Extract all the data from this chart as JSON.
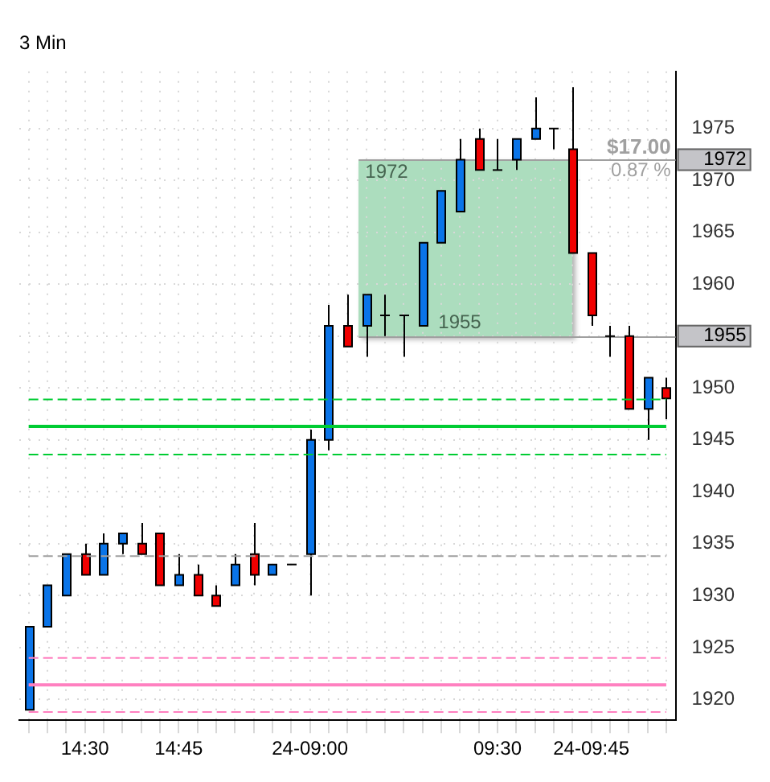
{
  "chart_data": {
    "type": "candlestick",
    "title": "3 Min",
    "categories": [
      null,
      null,
      null,
      "14:30",
      null,
      null,
      null,
      null,
      "14:45",
      null,
      null,
      null,
      null,
      null,
      null,
      "24-09:00",
      null,
      null,
      null,
      null,
      null,
      null,
      null,
      null,
      null,
      "09:30",
      null,
      null,
      null,
      null,
      "24-09:45",
      null,
      null,
      null,
      null
    ],
    "ohlc": [
      [
        1919,
        1927,
        1919,
        1927
      ],
      [
        1927,
        1931,
        1927,
        1931
      ],
      [
        1930,
        1934,
        1930,
        1934
      ],
      [
        1934,
        1935,
        1932,
        1932
      ],
      [
        1932,
        1936,
        1932,
        1935
      ],
      [
        1935,
        1936,
        1934,
        1936
      ],
      [
        1935,
        1937,
        1934,
        1934
      ],
      [
        1936,
        1936,
        1931,
        1931
      ],
      [
        1931,
        1934,
        1931,
        1932
      ],
      [
        1932,
        1933,
        1930,
        1930
      ],
      [
        1930,
        1931,
        1929,
        1929
      ],
      [
        1931,
        1934,
        1931,
        1933
      ],
      [
        1934,
        1937,
        1931,
        1932
      ],
      [
        1932,
        1933,
        1932,
        1933
      ],
      [
        1933,
        1933,
        1933,
        1933
      ],
      [
        1934,
        1946,
        1930,
        1945
      ],
      [
        1945,
        1958,
        1944,
        1956
      ],
      [
        1956,
        1959,
        1954,
        1954
      ],
      [
        1956,
        1959,
        1953,
        1959
      ],
      [
        1957,
        1959,
        1955,
        1957
      ],
      [
        1957,
        1957,
        1953,
        1957
      ],
      [
        1956,
        1964,
        1956,
        1964
      ],
      [
        1964,
        1969,
        1964,
        1969
      ],
      [
        1967,
        1974,
        1967,
        1972
      ],
      [
        1974,
        1975,
        1971,
        1971
      ],
      [
        1971,
        1974,
        1971,
        1971
      ],
      [
        1972,
        1974,
        1971,
        1974
      ],
      [
        1974,
        1978,
        1974,
        1975
      ],
      [
        1975,
        1975,
        1973,
        1975
      ],
      [
        1973,
        1979,
        1963,
        1963
      ],
      [
        1963,
        1963,
        1956,
        1957
      ],
      [
        1955,
        1956,
        1953,
        1955
      ],
      [
        1955,
        1956,
        1948,
        1948
      ],
      [
        1948,
        1951,
        1945,
        1951
      ],
      [
        1950,
        1951,
        1947,
        1949
      ]
    ],
    "colors": [
      "#0a74e8",
      "#0a74e8",
      "#0a74e8",
      "#f00000",
      "#0a74e8",
      "#0a74e8",
      "#f00000",
      "#f00000",
      "#0a74e8",
      "#f00000",
      "#f00000",
      "#0a74e8",
      "#f00000",
      "#0a74e8",
      "#000000",
      "#0a74e8",
      "#0a74e8",
      "#f00000",
      "#0a74e8",
      "#000000",
      "#000000",
      "#0a74e8",
      "#0a74e8",
      "#0a74e8",
      "#f00000",
      "#000000",
      "#0a74e8",
      "#0a74e8",
      "#000000",
      "#f00000",
      "#f00000",
      "#000000",
      "#f00000",
      "#0a74e8",
      "#f00000"
    ],
    "series": [
      {
        "type": "line",
        "color": "#00cc33",
        "line_style": "dashed",
        "values": [
          1948.9,
          1948.9,
          1948.9,
          1948.9,
          1948.9,
          1948.9,
          1948.9,
          1948.9,
          1948.9,
          1948.9,
          1948.9,
          1948.9,
          1948.9,
          1948.9,
          1948.9,
          1948.9,
          1948.9,
          1948.9,
          1948.9,
          1948.9,
          1948.9,
          1948.9,
          1948.9,
          1948.9,
          1948.9,
          1948.9,
          1948.9,
          1948.9,
          1948.9,
          1948.9,
          1948.9,
          1948.9,
          1948.9,
          1948.9,
          1948.9
        ]
      },
      {
        "type": "line",
        "color": "#00cc33",
        "line_style": "solid",
        "values": [
          1946.3,
          1946.3,
          1946.3,
          1946.3,
          1946.3,
          1946.3,
          1946.3,
          1946.3,
          1946.3,
          1946.3,
          1946.3,
          1946.3,
          1946.3,
          1946.3,
          1946.3,
          1946.3,
          1946.3,
          1946.3,
          1946.3,
          1946.3,
          1946.3,
          1946.3,
          1946.3,
          1946.3,
          1946.3,
          1946.3,
          1946.3,
          1946.3,
          1946.3,
          1946.3,
          1946.3,
          1946.3,
          1946.3,
          1946.3,
          1946.3
        ]
      },
      {
        "type": "line",
        "color": "#00cc33",
        "line_style": "dashed",
        "values": [
          1943.6,
          1943.6,
          1943.6,
          1943.6,
          1943.6,
          1943.6,
          1943.6,
          1943.6,
          1943.6,
          1943.6,
          1943.6,
          1943.6,
          1943.6,
          1943.6,
          1943.6,
          1943.6,
          1943.6,
          1943.6,
          1943.6,
          1943.6,
          1943.6,
          1943.6,
          1943.6,
          1943.6,
          1943.6,
          1943.6,
          1943.6,
          1943.6,
          1943.6,
          1943.6,
          1943.6,
          1943.6,
          1943.6,
          1943.6,
          1943.6
        ]
      },
      {
        "type": "line",
        "color": "#a0a0a0",
        "line_style": "dashed",
        "values": [
          1933.8,
          1933.8,
          1933.8,
          1933.8,
          1933.8,
          1933.8,
          1933.8,
          1933.8,
          1933.8,
          1933.8,
          1933.8,
          1933.8,
          1933.8,
          1933.8,
          1933.8,
          1933.8,
          1933.8,
          1933.8,
          1933.8,
          1933.8,
          1933.8,
          1933.8,
          1933.8,
          1933.8,
          1933.8,
          1933.8,
          1933.8,
          1933.8,
          1933.8,
          1933.8,
          1933.8,
          1933.8,
          1933.8,
          1933.8,
          1933.8
        ]
      },
      {
        "type": "line",
        "color": "#ff80c0",
        "line_style": "dashed",
        "values": [
          1924.0,
          1924.0,
          1924.0,
          1924.0,
          1924.0,
          1924.0,
          1924.0,
          1924.0,
          1924.0,
          1924.0,
          1924.0,
          1924.0,
          1924.0,
          1924.0,
          1924.0,
          1924.0,
          1924.0,
          1924.0,
          1924.0,
          1924.0,
          1924.0,
          1924.0,
          1924.0,
          1924.0,
          1924.0,
          1924.0,
          1924.0,
          1924.0,
          1924.0,
          1924.0,
          1924.0,
          1924.0,
          1924.0,
          1924.0,
          1924.0
        ]
      },
      {
        "type": "line",
        "color": "#ff80c0",
        "line_style": "solid",
        "values": [
          1921.4,
          1921.4,
          1921.4,
          1921.4,
          1921.4,
          1921.4,
          1921.4,
          1921.4,
          1921.4,
          1921.4,
          1921.4,
          1921.4,
          1921.4,
          1921.4,
          1921.4,
          1921.4,
          1921.4,
          1921.4,
          1921.4,
          1921.4,
          1921.4,
          1921.4,
          1921.4,
          1921.4,
          1921.4,
          1921.4,
          1921.4,
          1921.4,
          1921.4,
          1921.4,
          1921.4,
          1921.4,
          1921.4,
          1921.4,
          1921.4
        ]
      },
      {
        "type": "line",
        "color": "#ff80c0",
        "line_style": "dashed",
        "values": [
          1918.8,
          1918.8,
          1918.8,
          1918.8,
          1918.8,
          1918.8,
          1918.8,
          1918.8,
          1918.8,
          1918.8,
          1918.8,
          1918.8,
          1918.8,
          1918.8,
          1918.8,
          1918.8,
          1918.8,
          1918.8,
          1918.8,
          1918.8,
          1918.8,
          1918.8,
          1918.8,
          1918.8,
          1918.8,
          1918.8,
          1918.8,
          1918.8,
          1918.8,
          1918.8,
          1918.8,
          1918.8,
          1918.8,
          1918.8,
          1918.8
        ]
      }
    ],
    "ylim": [
      1918,
      1980.5
    ],
    "yticks": [
      1920,
      1925,
      1930,
      1935,
      1940,
      1945,
      1950,
      {
        "value": 1955,
        "label": null
      },
      1960,
      1965,
      1970,
      1975
    ],
    "grid": true,
    "ref_lines": [
      {
        "axis": "y",
        "value": 1972,
        "label": "1972",
        "color": "#a0a0a0"
      },
      {
        "axis": "y",
        "value": 1955,
        "label": "1955",
        "color": "#a0a0a0"
      }
    ],
    "annotations": [
      {
        "text": "$17.00",
        "y": 1972
      },
      {
        "text": "0.87 %",
        "y": 1972
      }
    ]
  }
}
